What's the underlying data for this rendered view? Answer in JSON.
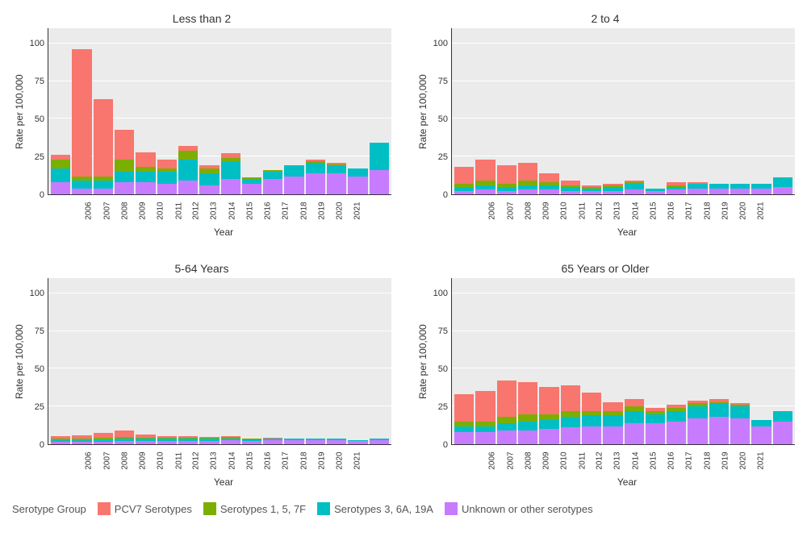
{
  "chart": {
    "type": "stacked-bar-small-multiples",
    "background_color": "#ffffff",
    "panel_background": "#ebebeb",
    "grid_color": "#ffffff",
    "axis_text_color": "#333333",
    "title_fontsize": 14,
    "axis_label_fontsize": 12,
    "tick_fontsize": 11,
    "x_tick_fontsize": 10,
    "x_label": "Year",
    "y_label": "Rate per 100,000",
    "categories": [
      "2006",
      "2007",
      "2008",
      "2009",
      "2010",
      "2011",
      "2012",
      "2013",
      "2014",
      "2015",
      "2016",
      "2017",
      "2018",
      "2019",
      "2020",
      "2021"
    ],
    "ylim": [
      0,
      110
    ],
    "yticks": [
      0,
      25,
      50,
      75,
      100
    ],
    "bar_width": 0.9,
    "series": [
      {
        "key": "pcv7",
        "label": "PCV7 Serotypes",
        "color": "#f8766d"
      },
      {
        "key": "s157f",
        "label": "Serotypes 1, 5, 7F",
        "color": "#7cae00"
      },
      {
        "key": "s36a19a",
        "label": "Serotypes 3, 6A, 19A",
        "color": "#00bfc4"
      },
      {
        "key": "unknown",
        "label": "Unknown or other serotypes",
        "color": "#c77cff"
      }
    ],
    "legend_title": "Serotype Group",
    "panels": [
      {
        "title": "Less than 2",
        "stacks": [
          {
            "unknown": 8,
            "s36a19a": 9,
            "s157f": 6,
            "pcv7": 3
          },
          {
            "unknown": 4,
            "s36a19a": 5,
            "s157f": 3,
            "pcv7": 84
          },
          {
            "unknown": 4,
            "s36a19a": 5,
            "s157f": 3,
            "pcv7": 51
          },
          {
            "unknown": 8,
            "s36a19a": 7,
            "s157f": 8,
            "pcv7": 20
          },
          {
            "unknown": 8,
            "s36a19a": 7,
            "s157f": 3,
            "pcv7": 10
          },
          {
            "unknown": 7,
            "s36a19a": 8,
            "s157f": 2,
            "pcv7": 6
          },
          {
            "unknown": 9,
            "s36a19a": 14,
            "s157f": 6,
            "pcv7": 3
          },
          {
            "unknown": 6,
            "s36a19a": 8,
            "s157f": 3,
            "pcv7": 2
          },
          {
            "unknown": 10,
            "s36a19a": 12,
            "s157f": 2,
            "pcv7": 3
          },
          {
            "unknown": 7,
            "s36a19a": 3,
            "s157f": 1,
            "pcv7": 0
          },
          {
            "unknown": 10,
            "s36a19a": 5,
            "s157f": 1,
            "pcv7": 0
          },
          {
            "unknown": 12,
            "s36a19a": 7,
            "s157f": 0,
            "pcv7": 0
          },
          {
            "unknown": 14,
            "s36a19a": 7,
            "s157f": 1,
            "pcv7": 1
          },
          {
            "unknown": 14,
            "s36a19a": 5,
            "s157f": 1,
            "pcv7": 1
          },
          {
            "unknown": 12,
            "s36a19a": 5,
            "s157f": 0,
            "pcv7": 0
          },
          {
            "unknown": 16,
            "s36a19a": 18,
            "s157f": 0,
            "pcv7": 0
          }
        ]
      },
      {
        "title": "2 to 4",
        "stacks": [
          {
            "unknown": 2,
            "s36a19a": 3,
            "s157f": 2,
            "pcv7": 11
          },
          {
            "unknown": 3,
            "s36a19a": 3,
            "s157f": 3,
            "pcv7": 14
          },
          {
            "unknown": 2,
            "s36a19a": 3,
            "s157f": 2,
            "pcv7": 12
          },
          {
            "unknown": 3,
            "s36a19a": 3,
            "s157f": 3,
            "pcv7": 12
          },
          {
            "unknown": 3,
            "s36a19a": 3,
            "s157f": 2,
            "pcv7": 6
          },
          {
            "unknown": 2,
            "s36a19a": 3,
            "s157f": 1,
            "pcv7": 3
          },
          {
            "unknown": 2,
            "s36a19a": 2,
            "s157f": 1,
            "pcv7": 1
          },
          {
            "unknown": 2,
            "s36a19a": 3,
            "s157f": 1,
            "pcv7": 1
          },
          {
            "unknown": 3,
            "s36a19a": 4,
            "s157f": 1,
            "pcv7": 1
          },
          {
            "unknown": 2,
            "s36a19a": 2,
            "s157f": 0,
            "pcv7": 0
          },
          {
            "unknown": 3,
            "s36a19a": 2,
            "s157f": 1,
            "pcv7": 2
          },
          {
            "unknown": 4,
            "s36a19a": 3,
            "s157f": 0,
            "pcv7": 1
          },
          {
            "unknown": 4,
            "s36a19a": 3,
            "s157f": 0,
            "pcv7": 0
          },
          {
            "unknown": 4,
            "s36a19a": 3,
            "s157f": 0,
            "pcv7": 0
          },
          {
            "unknown": 4,
            "s36a19a": 3,
            "s157f": 0,
            "pcv7": 0
          },
          {
            "unknown": 5,
            "s36a19a": 6,
            "s157f": 0,
            "pcv7": 0
          }
        ]
      },
      {
        "title": "5-64 Years",
        "stacks": [
          {
            "unknown": 1.5,
            "s36a19a": 1.0,
            "s157f": 1.0,
            "pcv7": 2.0
          },
          {
            "unknown": 1.5,
            "s36a19a": 1.0,
            "s157f": 1.0,
            "pcv7": 2.5
          },
          {
            "unknown": 1.5,
            "s36a19a": 1.5,
            "s157f": 1.5,
            "pcv7": 3.0
          },
          {
            "unknown": 2.0,
            "s36a19a": 1.5,
            "s157f": 1.5,
            "pcv7": 4.0
          },
          {
            "unknown": 2.0,
            "s36a19a": 1.5,
            "s157f": 1.0,
            "pcv7": 2.0
          },
          {
            "unknown": 2.0,
            "s36a19a": 1.5,
            "s157f": 1.0,
            "pcv7": 1.0
          },
          {
            "unknown": 2.0,
            "s36a19a": 1.5,
            "s157f": 1.0,
            "pcv7": 1.0
          },
          {
            "unknown": 2.0,
            "s36a19a": 1.5,
            "s157f": 1.0,
            "pcv7": 0.5
          },
          {
            "unknown": 2.5,
            "s36a19a": 1.5,
            "s157f": 1.0,
            "pcv7": 0.5
          },
          {
            "unknown": 2.0,
            "s36a19a": 1.0,
            "s157f": 0.5,
            "pcv7": 0.5
          },
          {
            "unknown": 2.5,
            "s36a19a": 1.0,
            "s157f": 0.5,
            "pcv7": 0.5
          },
          {
            "unknown": 2.5,
            "s36a19a": 1.0,
            "s157f": 0.5,
            "pcv7": 0.0
          },
          {
            "unknown": 2.5,
            "s36a19a": 1.0,
            "s157f": 0.5,
            "pcv7": 0.0
          },
          {
            "unknown": 2.5,
            "s36a19a": 1.0,
            "s157f": 0.5,
            "pcv7": 0.0
          },
          {
            "unknown": 2.0,
            "s36a19a": 0.5,
            "s157f": 0.0,
            "pcv7": 0.0
          },
          {
            "unknown": 2.5,
            "s36a19a": 1.0,
            "s157f": 0.0,
            "pcv7": 0.0
          }
        ]
      },
      {
        "title": "65 Years or Older",
        "stacks": [
          {
            "unknown": 8,
            "s36a19a": 4,
            "s157f": 3,
            "pcv7": 18
          },
          {
            "unknown": 8,
            "s36a19a": 4,
            "s157f": 3,
            "pcv7": 20
          },
          {
            "unknown": 9,
            "s36a19a": 5,
            "s157f": 4,
            "pcv7": 24
          },
          {
            "unknown": 9,
            "s36a19a": 6,
            "s157f": 5,
            "pcv7": 21
          },
          {
            "unknown": 10,
            "s36a19a": 6,
            "s157f": 4,
            "pcv7": 18
          },
          {
            "unknown": 11,
            "s36a19a": 7,
            "s157f": 4,
            "pcv7": 17
          },
          {
            "unknown": 12,
            "s36a19a": 7,
            "s157f": 3,
            "pcv7": 12
          },
          {
            "unknown": 12,
            "s36a19a": 7,
            "s157f": 3,
            "pcv7": 6
          },
          {
            "unknown": 14,
            "s36a19a": 8,
            "s157f": 3,
            "pcv7": 5
          },
          {
            "unknown": 14,
            "s36a19a": 6,
            "s157f": 2,
            "pcv7": 2
          },
          {
            "unknown": 15,
            "s36a19a": 7,
            "s157f": 2,
            "pcv7": 2
          },
          {
            "unknown": 17,
            "s36a19a": 8,
            "s157f": 2,
            "pcv7": 2
          },
          {
            "unknown": 18,
            "s36a19a": 9,
            "s157f": 1,
            "pcv7": 2
          },
          {
            "unknown": 17,
            "s36a19a": 8,
            "s157f": 1,
            "pcv7": 1
          },
          {
            "unknown": 12,
            "s36a19a": 4,
            "s157f": 0,
            "pcv7": 0
          },
          {
            "unknown": 15,
            "s36a19a": 7,
            "s157f": 0,
            "pcv7": 0
          }
        ]
      }
    ]
  }
}
